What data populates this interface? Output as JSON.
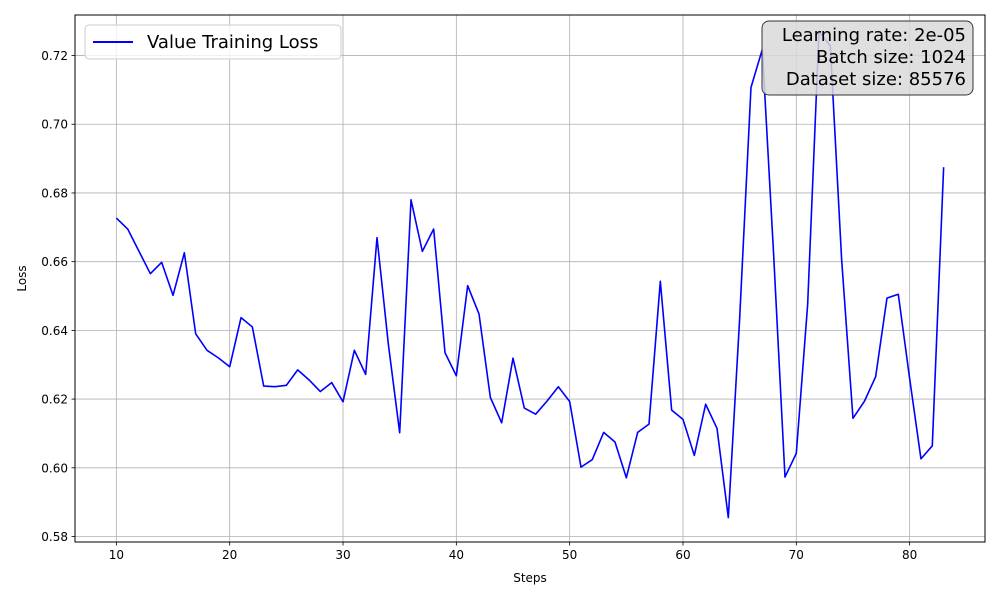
{
  "chart_data": {
    "type": "line",
    "xlabel": "Steps",
    "ylabel": "Loss",
    "xlim": [
      6.35,
      86.65
    ],
    "ylim": [
      0.5784,
      0.7318
    ],
    "xticks": [
      10,
      20,
      30,
      40,
      50,
      60,
      70,
      80
    ],
    "yticks": [
      0.58,
      0.6,
      0.62,
      0.64,
      0.66,
      0.68,
      0.7,
      0.72
    ],
    "ytick_labels": [
      "0.58",
      "0.60",
      "0.62",
      "0.64",
      "0.66",
      "0.68",
      "0.70",
      "0.72"
    ],
    "grid": true,
    "legend_position": "top-left",
    "series": [
      {
        "name": "Value Training Loss",
        "color": "#0000ff",
        "x": [
          10,
          11,
          12,
          13,
          14,
          15,
          16,
          17,
          18,
          19,
          20,
          21,
          22,
          23,
          24,
          25,
          26,
          27,
          28,
          29,
          30,
          31,
          32,
          33,
          34,
          35,
          36,
          37,
          38,
          39,
          40,
          41,
          42,
          43,
          44,
          45,
          46,
          47,
          48,
          49,
          50,
          51,
          52,
          53,
          54,
          55,
          56,
          57,
          58,
          59,
          60,
          61,
          62,
          63,
          64,
          65,
          66,
          67,
          68,
          69,
          70,
          71,
          72,
          73,
          74,
          75,
          76,
          77,
          78,
          79,
          80,
          81,
          82,
          83
        ],
        "y": [
          0.6727,
          0.6695,
          0.663,
          0.6565,
          0.6598,
          0.6502,
          0.6626,
          0.639,
          0.6342,
          0.632,
          0.6294,
          0.6437,
          0.641,
          0.6238,
          0.6236,
          0.624,
          0.6285,
          0.6256,
          0.6222,
          0.6248,
          0.6192,
          0.6342,
          0.6272,
          0.667,
          0.636,
          0.6102,
          0.678,
          0.663,
          0.6695,
          0.6335,
          0.6268,
          0.653,
          0.6448,
          0.6205,
          0.6131,
          0.6319,
          0.6174,
          0.6156,
          0.6194,
          0.6236,
          0.6193,
          0.6002,
          0.6024,
          0.6103,
          0.6075,
          0.5971,
          0.6103,
          0.6127,
          0.6543,
          0.6168,
          0.6141,
          0.6036,
          0.6185,
          0.6115,
          0.5855,
          0.6434,
          0.7107,
          0.7218,
          0.662,
          0.5973,
          0.6042,
          0.6475,
          0.727,
          0.7228,
          0.6606,
          0.6144,
          0.6193,
          0.6265,
          0.6494,
          0.6505,
          0.626,
          0.6026,
          0.6064,
          0.6875
        ]
      }
    ],
    "annotation_lines": [
      "Learning rate: 2e-05",
      "Batch size: 1024",
      "Dataset size: 85576"
    ],
    "annotation_position": "top-right"
  }
}
